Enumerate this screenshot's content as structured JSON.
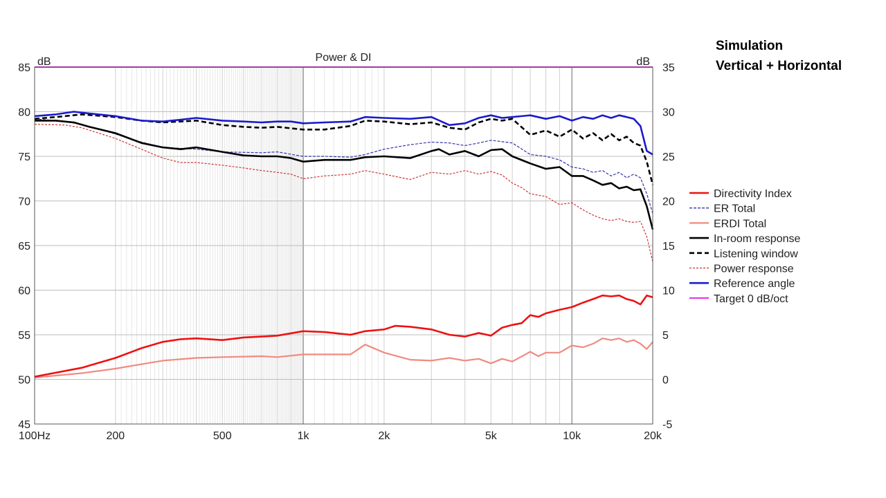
{
  "annotation": {
    "line1": "Simulation",
    "line2": "Vertical + Horizontal"
  },
  "chart_data": {
    "type": "line",
    "title": "Power & DI",
    "x_scale": "log",
    "xlim": [
      100,
      20000
    ],
    "ylim_left": [
      45,
      85
    ],
    "ylim_right": [
      -5,
      35
    ],
    "left_unit": "dB",
    "right_unit": "dB",
    "grid": true,
    "legend_position": "right",
    "x_ticks": [
      {
        "value": 100,
        "label": "100Hz"
      },
      {
        "value": 200,
        "label": "200"
      },
      {
        "value": 500,
        "label": "500"
      },
      {
        "value": 1000,
        "label": "1k"
      },
      {
        "value": 2000,
        "label": "2k"
      },
      {
        "value": 5000,
        "label": "5k"
      },
      {
        "value": 10000,
        "label": "10k"
      },
      {
        "value": 20000,
        "label": "20k"
      }
    ],
    "y_left_ticks": [
      45,
      50,
      55,
      60,
      65,
      70,
      75,
      80,
      85
    ],
    "y_right_ticks": [
      -5,
      0,
      5,
      10,
      15,
      20,
      25,
      30,
      35
    ],
    "series": [
      {
        "name": "Directivity Index",
        "axis": "right",
        "color": "#ee1111",
        "width": 2.6,
        "dash": "",
        "points": [
          [
            100,
            0.3
          ],
          [
            150,
            1.3
          ],
          [
            200,
            2.4
          ],
          [
            250,
            3.5
          ],
          [
            300,
            4.2
          ],
          [
            350,
            4.5
          ],
          [
            400,
            4.6
          ],
          [
            500,
            4.4
          ],
          [
            600,
            4.7
          ],
          [
            700,
            4.8
          ],
          [
            800,
            4.9
          ],
          [
            1000,
            5.4
          ],
          [
            1200,
            5.3
          ],
          [
            1500,
            5.0
          ],
          [
            1700,
            5.4
          ],
          [
            2000,
            5.6
          ],
          [
            2200,
            6.0
          ],
          [
            2500,
            5.9
          ],
          [
            3000,
            5.6
          ],
          [
            3500,
            5.0
          ],
          [
            4000,
            4.8
          ],
          [
            4500,
            5.2
          ],
          [
            5000,
            4.9
          ],
          [
            5500,
            5.8
          ],
          [
            6000,
            6.1
          ],
          [
            6500,
            6.3
          ],
          [
            7000,
            7.2
          ],
          [
            7500,
            7.0
          ],
          [
            8000,
            7.4
          ],
          [
            9000,
            7.8
          ],
          [
            10000,
            8.1
          ],
          [
            11000,
            8.6
          ],
          [
            12000,
            9.0
          ],
          [
            13000,
            9.4
          ],
          [
            14000,
            9.3
          ],
          [
            15000,
            9.4
          ],
          [
            16000,
            9.0
          ],
          [
            17000,
            8.8
          ],
          [
            18000,
            8.4
          ],
          [
            19000,
            9.4
          ],
          [
            20000,
            9.2
          ]
        ]
      },
      {
        "name": "ER Total",
        "axis": "left",
        "color": "#3333aa",
        "width": 1.2,
        "dash": "4 2",
        "points": [
          [
            100,
            79.2
          ],
          [
            120,
            79.0
          ],
          [
            150,
            78.6
          ],
          [
            200,
            77.5
          ],
          [
            250,
            76.6
          ],
          [
            300,
            76.0
          ],
          [
            400,
            75.8
          ],
          [
            500,
            75.5
          ],
          [
            700,
            75.4
          ],
          [
            800,
            75.5
          ],
          [
            1000,
            75.0
          ],
          [
            1200,
            75.0
          ],
          [
            1500,
            74.9
          ],
          [
            1700,
            75.2
          ],
          [
            2000,
            75.8
          ],
          [
            2500,
            76.3
          ],
          [
            3000,
            76.6
          ],
          [
            3500,
            76.5
          ],
          [
            4000,
            76.2
          ],
          [
            4500,
            76.5
          ],
          [
            5000,
            76.8
          ],
          [
            6000,
            76.5
          ],
          [
            7000,
            75.2
          ],
          [
            8000,
            75.0
          ],
          [
            9000,
            74.6
          ],
          [
            10000,
            73.8
          ],
          [
            11000,
            73.6
          ],
          [
            12000,
            73.2
          ],
          [
            13000,
            73.4
          ],
          [
            14000,
            72.8
          ],
          [
            15000,
            73.2
          ],
          [
            16000,
            72.6
          ],
          [
            17000,
            73.0
          ],
          [
            18000,
            72.6
          ],
          [
            19000,
            70.8
          ],
          [
            20000,
            68.6
          ]
        ]
      },
      {
        "name": "ERDI Total",
        "axis": "right",
        "color": "#f08a80",
        "width": 2.2,
        "dash": "",
        "points": [
          [
            100,
            0.2
          ],
          [
            150,
            0.7
          ],
          [
            200,
            1.2
          ],
          [
            250,
            1.7
          ],
          [
            300,
            2.1
          ],
          [
            400,
            2.4
          ],
          [
            500,
            2.5
          ],
          [
            700,
            2.6
          ],
          [
            800,
            2.5
          ],
          [
            1000,
            2.8
          ],
          [
            1200,
            2.8
          ],
          [
            1500,
            2.8
          ],
          [
            1700,
            3.9
          ],
          [
            2000,
            3.0
          ],
          [
            2500,
            2.2
          ],
          [
            3000,
            2.1
          ],
          [
            3500,
            2.4
          ],
          [
            4000,
            2.1
          ],
          [
            4500,
            2.3
          ],
          [
            5000,
            1.8
          ],
          [
            5500,
            2.3
          ],
          [
            6000,
            2.0
          ],
          [
            7000,
            3.1
          ],
          [
            7500,
            2.6
          ],
          [
            8000,
            3.0
          ],
          [
            9000,
            3.0
          ],
          [
            10000,
            3.8
          ],
          [
            11000,
            3.6
          ],
          [
            12000,
            4.0
          ],
          [
            13000,
            4.6
          ],
          [
            14000,
            4.4
          ],
          [
            15000,
            4.6
          ],
          [
            16000,
            4.2
          ],
          [
            17000,
            4.4
          ],
          [
            18000,
            4.0
          ],
          [
            19000,
            3.4
          ],
          [
            20000,
            4.2
          ]
        ]
      },
      {
        "name": "In-room response",
        "axis": "left",
        "color": "#000000",
        "width": 2.6,
        "dash": "",
        "points": [
          [
            100,
            79.0
          ],
          [
            120,
            79.0
          ],
          [
            140,
            78.8
          ],
          [
            160,
            78.3
          ],
          [
            200,
            77.6
          ],
          [
            250,
            76.5
          ],
          [
            300,
            76.0
          ],
          [
            350,
            75.8
          ],
          [
            400,
            76.0
          ],
          [
            500,
            75.5
          ],
          [
            600,
            75.1
          ],
          [
            700,
            75.0
          ],
          [
            800,
            75.0
          ],
          [
            900,
            74.8
          ],
          [
            1000,
            74.4
          ],
          [
            1200,
            74.6
          ],
          [
            1500,
            74.6
          ],
          [
            1700,
            74.9
          ],
          [
            2000,
            75.0
          ],
          [
            2500,
            74.8
          ],
          [
            3000,
            75.6
          ],
          [
            3200,
            75.8
          ],
          [
            3500,
            75.2
          ],
          [
            4000,
            75.6
          ],
          [
            4500,
            75.0
          ],
          [
            5000,
            75.7
          ],
          [
            5500,
            75.8
          ],
          [
            6000,
            75.0
          ],
          [
            7000,
            74.2
          ],
          [
            8000,
            73.6
          ],
          [
            9000,
            73.8
          ],
          [
            10000,
            72.8
          ],
          [
            11000,
            72.8
          ],
          [
            12000,
            72.3
          ],
          [
            13000,
            71.8
          ],
          [
            14000,
            72.0
          ],
          [
            15000,
            71.4
          ],
          [
            16000,
            71.6
          ],
          [
            17000,
            71.2
          ],
          [
            18000,
            71.3
          ],
          [
            19000,
            69.4
          ],
          [
            20000,
            66.8
          ]
        ]
      },
      {
        "name": "Listening window",
        "axis": "left",
        "color": "#000000",
        "width": 2.6,
        "dash": "7 4",
        "points": [
          [
            100,
            79.2
          ],
          [
            120,
            79.4
          ],
          [
            150,
            79.7
          ],
          [
            200,
            79.4
          ],
          [
            250,
            79.0
          ],
          [
            300,
            78.8
          ],
          [
            400,
            79.0
          ],
          [
            500,
            78.5
          ],
          [
            600,
            78.3
          ],
          [
            700,
            78.2
          ],
          [
            800,
            78.3
          ],
          [
            1000,
            78.0
          ],
          [
            1200,
            78.0
          ],
          [
            1500,
            78.4
          ],
          [
            1700,
            79.0
          ],
          [
            2000,
            78.9
          ],
          [
            2500,
            78.6
          ],
          [
            3000,
            78.8
          ],
          [
            3500,
            78.2
          ],
          [
            4000,
            78.0
          ],
          [
            4500,
            78.8
          ],
          [
            5000,
            79.2
          ],
          [
            5500,
            79.0
          ],
          [
            6000,
            79.2
          ],
          [
            7000,
            77.4
          ],
          [
            8000,
            77.9
          ],
          [
            9000,
            77.2
          ],
          [
            10000,
            78.0
          ],
          [
            11000,
            77.0
          ],
          [
            12000,
            77.6
          ],
          [
            13000,
            76.8
          ],
          [
            14000,
            77.5
          ],
          [
            15000,
            76.8
          ],
          [
            16000,
            77.2
          ],
          [
            17000,
            76.5
          ],
          [
            18000,
            76.2
          ],
          [
            19000,
            74.4
          ],
          [
            20000,
            71.8
          ]
        ]
      },
      {
        "name": "Power response",
        "axis": "left",
        "color": "#cc3333",
        "width": 1.2,
        "dash": "3 2",
        "points": [
          [
            100,
            78.6
          ],
          [
            130,
            78.5
          ],
          [
            150,
            78.2
          ],
          [
            200,
            77.0
          ],
          [
            250,
            75.8
          ],
          [
            300,
            74.8
          ],
          [
            350,
            74.3
          ],
          [
            400,
            74.3
          ],
          [
            500,
            74.0
          ],
          [
            600,
            73.7
          ],
          [
            700,
            73.4
          ],
          [
            800,
            73.2
          ],
          [
            900,
            73.0
          ],
          [
            1000,
            72.5
          ],
          [
            1200,
            72.8
          ],
          [
            1500,
            73.0
          ],
          [
            1700,
            73.4
          ],
          [
            2000,
            73.0
          ],
          [
            2500,
            72.4
          ],
          [
            3000,
            73.2
          ],
          [
            3500,
            73.0
          ],
          [
            4000,
            73.4
          ],
          [
            4500,
            73.0
          ],
          [
            5000,
            73.3
          ],
          [
            5500,
            72.9
          ],
          [
            6000,
            72.0
          ],
          [
            6500,
            71.5
          ],
          [
            7000,
            70.8
          ],
          [
            8000,
            70.5
          ],
          [
            9000,
            69.6
          ],
          [
            10000,
            69.8
          ],
          [
            11000,
            69.0
          ],
          [
            12000,
            68.4
          ],
          [
            13000,
            68.0
          ],
          [
            14000,
            67.8
          ],
          [
            15000,
            68.0
          ],
          [
            16000,
            67.7
          ],
          [
            17000,
            67.6
          ],
          [
            18000,
            67.7
          ],
          [
            19000,
            66.0
          ],
          [
            20000,
            63.2
          ]
        ]
      },
      {
        "name": "Reference angle",
        "axis": "left",
        "color": "#1a1acc",
        "width": 2.6,
        "dash": "",
        "points": [
          [
            100,
            79.5
          ],
          [
            120,
            79.7
          ],
          [
            140,
            80.0
          ],
          [
            160,
            79.8
          ],
          [
            200,
            79.5
          ],
          [
            250,
            79.0
          ],
          [
            300,
            78.9
          ],
          [
            350,
            79.1
          ],
          [
            400,
            79.3
          ],
          [
            500,
            79.0
          ],
          [
            600,
            78.9
          ],
          [
            700,
            78.8
          ],
          [
            800,
            78.9
          ],
          [
            900,
            78.9
          ],
          [
            1000,
            78.7
          ],
          [
            1200,
            78.8
          ],
          [
            1500,
            78.9
          ],
          [
            1700,
            79.4
          ],
          [
            2000,
            79.3
          ],
          [
            2500,
            79.2
          ],
          [
            3000,
            79.4
          ],
          [
            3500,
            78.5
          ],
          [
            4000,
            78.7
          ],
          [
            4500,
            79.3
          ],
          [
            5000,
            79.6
          ],
          [
            5500,
            79.3
          ],
          [
            6000,
            79.4
          ],
          [
            7000,
            79.6
          ],
          [
            8000,
            79.2
          ],
          [
            9000,
            79.5
          ],
          [
            10000,
            79.0
          ],
          [
            11000,
            79.4
          ],
          [
            12000,
            79.2
          ],
          [
            13000,
            79.6
          ],
          [
            14000,
            79.3
          ],
          [
            15000,
            79.6
          ],
          [
            16000,
            79.4
          ],
          [
            17000,
            79.2
          ],
          [
            18000,
            78.4
          ],
          [
            19000,
            75.6
          ],
          [
            20000,
            75.2
          ]
        ]
      },
      {
        "name": "Target 0 dB/oct",
        "axis": "left",
        "color": "#ee22ee",
        "width": 2.0,
        "dash": "",
        "points": [
          [
            100,
            85
          ],
          [
            20000,
            85
          ]
        ]
      }
    ]
  }
}
